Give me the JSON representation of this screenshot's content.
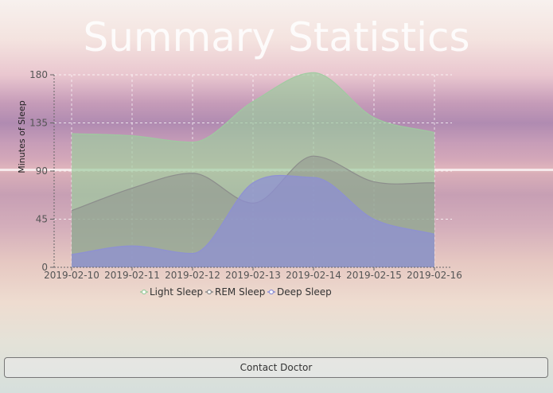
{
  "page": {
    "title": "Summary Statistics",
    "contact_button": "Contact Doctor"
  },
  "colors": {
    "light_sleep": "#9ccc9e",
    "rem_sleep": "#8a8a8a",
    "deep_sleep": "#8d8fd6"
  },
  "chart_data": {
    "type": "area",
    "x": [
      "2019-02-10",
      "2019-02-11",
      "2019-02-12",
      "2019-02-13",
      "2019-02-14",
      "2019-02-15",
      "2019-02-16"
    ],
    "series": [
      {
        "name": "Light Sleep",
        "values": [
          125,
          123,
          117,
          155,
          182,
          140,
          126
        ]
      },
      {
        "name": "REM Sleep",
        "values": [
          53,
          74,
          88,
          60,
          104,
          80,
          79
        ]
      },
      {
        "name": "Deep Sleep",
        "values": [
          12,
          20,
          13,
          79,
          84,
          45,
          31
        ]
      }
    ],
    "xlabel": "",
    "ylabel": "Minutes of Sleep",
    "ylim": [
      0,
      180
    ],
    "yticks": [
      0,
      45,
      90,
      135,
      180
    ],
    "grid": true,
    "legend": "bottom"
  }
}
